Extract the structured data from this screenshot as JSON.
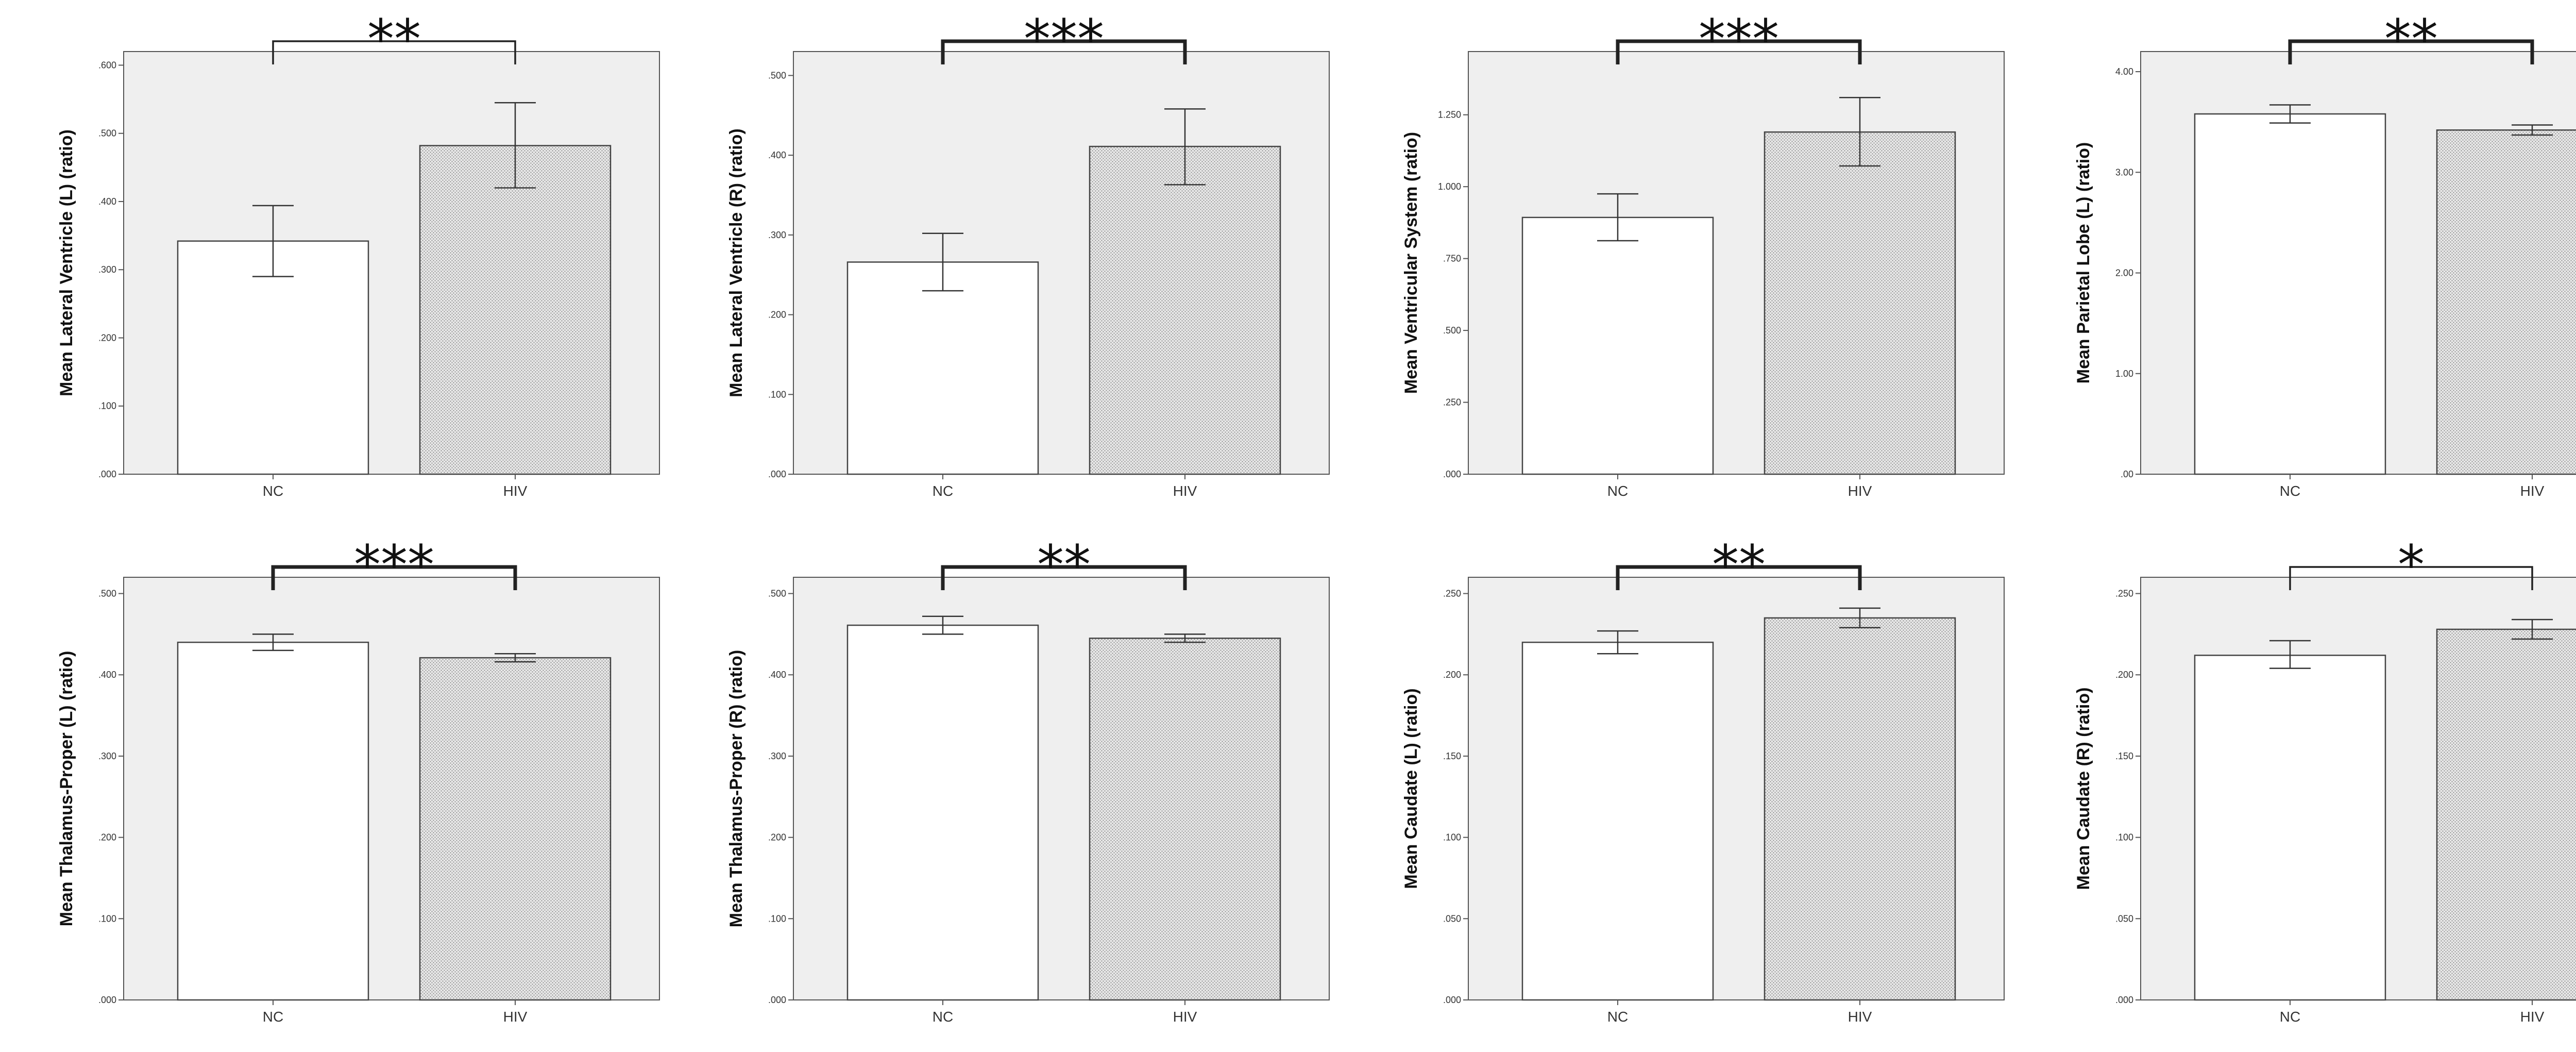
{
  "colors": {
    "plot_bg": "#efefef",
    "axis": "#555555",
    "nc_bar": "#ffffff",
    "hiv_bar": "#d6d6d6",
    "bracket": "#222222"
  },
  "chart_data": [
    {
      "type": "bar",
      "ylabel": "Mean Lateral Ventricle (L) (ratio)",
      "categories": [
        "NC",
        "HIV"
      ],
      "values": [
        0.342,
        0.482
      ],
      "errors": [
        [
          0.29,
          0.394
        ],
        [
          0.42,
          0.545
        ]
      ],
      "ylim": [
        0,
        0.62
      ],
      "yticks": [
        ".000",
        ".100",
        ".200",
        ".300",
        ".400",
        ".500",
        ".600"
      ],
      "ytick_values": [
        0,
        0.1,
        0.2,
        0.3,
        0.4,
        0.5,
        0.6
      ],
      "significance": "**",
      "bracket_bold": false
    },
    {
      "type": "bar",
      "ylabel": "Mean Lateral Ventricle (R) (ratio)",
      "categories": [
        "NC",
        "HIV"
      ],
      "values": [
        0.266,
        0.411
      ],
      "errors": [
        [
          0.23,
          0.302
        ],
        [
          0.363,
          0.458
        ]
      ],
      "ylim": [
        0,
        0.53
      ],
      "yticks": [
        ".000",
        ".100",
        ".200",
        ".300",
        ".400",
        ".500"
      ],
      "ytick_values": [
        0,
        0.1,
        0.2,
        0.3,
        0.4,
        0.5
      ],
      "significance": "***",
      "bracket_bold": true
    },
    {
      "type": "bar",
      "ylabel": "Mean Ventricular System (ratio)",
      "categories": [
        "NC",
        "HIV"
      ],
      "values": [
        0.893,
        1.19
      ],
      "errors": [
        [
          0.812,
          0.975
        ],
        [
          1.072,
          1.31
        ]
      ],
      "ylim": [
        0,
        1.47
      ],
      "yticks": [
        ".000",
        ".250",
        ".500",
        ".750",
        "1.000",
        "1.250"
      ],
      "ytick_values": [
        0,
        0.25,
        0.5,
        0.75,
        1.0,
        1.25
      ],
      "significance": "***",
      "bracket_bold": true
    },
    {
      "type": "bar",
      "ylabel": "Mean Parietal Lobe (L) (ratio)",
      "categories": [
        "NC",
        "HIV"
      ],
      "values": [
        3.58,
        3.42
      ],
      "errors": [
        [
          3.49,
          3.67
        ],
        [
          3.37,
          3.47
        ]
      ],
      "ylim": [
        0,
        4.2
      ],
      "yticks": [
        ".00",
        "1.00",
        "2.00",
        "3.00",
        "4.00"
      ],
      "ytick_values": [
        0,
        1,
        2,
        3,
        4
      ],
      "significance": "**",
      "bracket_bold": true
    },
    {
      "type": "bar",
      "ylabel": "Mean Thalamus-Proper (L) (ratio)",
      "categories": [
        "NC",
        "HIV"
      ],
      "values": [
        0.44,
        0.421
      ],
      "errors": [
        [
          0.43,
          0.45
        ],
        [
          0.416,
          0.426
        ]
      ],
      "ylim": [
        0,
        0.52
      ],
      "yticks": [
        ".000",
        ".100",
        ".200",
        ".300",
        ".400",
        ".500"
      ],
      "ytick_values": [
        0,
        0.1,
        0.2,
        0.3,
        0.4,
        0.5
      ],
      "significance": "***",
      "bracket_bold": true
    },
    {
      "type": "bar",
      "ylabel": "Mean Thalamus-Proper (R) (ratio)",
      "categories": [
        "NC",
        "HIV"
      ],
      "values": [
        0.461,
        0.445
      ],
      "errors": [
        [
          0.45,
          0.472
        ],
        [
          0.44,
          0.45
        ]
      ],
      "ylim": [
        0,
        0.52
      ],
      "yticks": [
        ".000",
        ".100",
        ".200",
        ".300",
        ".400",
        ".500"
      ],
      "ytick_values": [
        0,
        0.1,
        0.2,
        0.3,
        0.4,
        0.5
      ],
      "significance": "**",
      "bracket_bold": true
    },
    {
      "type": "bar",
      "ylabel": "Mean Caudate (L) (ratio)",
      "categories": [
        "NC",
        "HIV"
      ],
      "values": [
        0.22,
        0.235
      ],
      "errors": [
        [
          0.213,
          0.227
        ],
        [
          0.229,
          0.241
        ]
      ],
      "ylim": [
        0,
        0.26
      ],
      "yticks": [
        ".000",
        ".050",
        ".100",
        ".150",
        ".200",
        ".250"
      ],
      "ytick_values": [
        0,
        0.05,
        0.1,
        0.15,
        0.2,
        0.25
      ],
      "significance": "**",
      "bracket_bold": true
    },
    {
      "type": "bar",
      "ylabel": "Mean Caudate (R) (ratio)",
      "categories": [
        "NC",
        "HIV"
      ],
      "values": [
        0.212,
        0.228
      ],
      "errors": [
        [
          0.204,
          0.221
        ],
        [
          0.222,
          0.234
        ]
      ],
      "ylim": [
        0,
        0.26
      ],
      "yticks": [
        ".000",
        ".050",
        ".100",
        ".150",
        ".200",
        ".250"
      ],
      "ytick_values": [
        0,
        0.05,
        0.1,
        0.15,
        0.2,
        0.25
      ],
      "significance": "*",
      "bracket_bold": false
    }
  ]
}
